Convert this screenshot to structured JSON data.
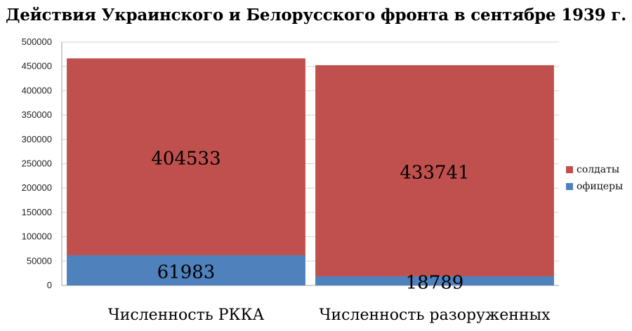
{
  "chart_data": {
    "type": "bar",
    "stacked": true,
    "title": "Действия Украинского и Белорусского фронта в сентябре 1939 г.",
    "categories": [
      "Численность РККА",
      "Численность разоруженных"
    ],
    "series": [
      {
        "name": "офицеры",
        "values": [
          61983,
          18789
        ],
        "color": "#4f81bd"
      },
      {
        "name": "солдаты",
        "values": [
          404533,
          433741
        ],
        "color": "#c0504d"
      }
    ],
    "ylim": [
      0,
      500000
    ],
    "yticks": [
      0,
      50000,
      100000,
      150000,
      200000,
      250000,
      300000,
      350000,
      400000,
      450000,
      500000
    ],
    "grid": true,
    "legend_position": "right",
    "legend_order": [
      "солдаты",
      "офицеры"
    ]
  }
}
